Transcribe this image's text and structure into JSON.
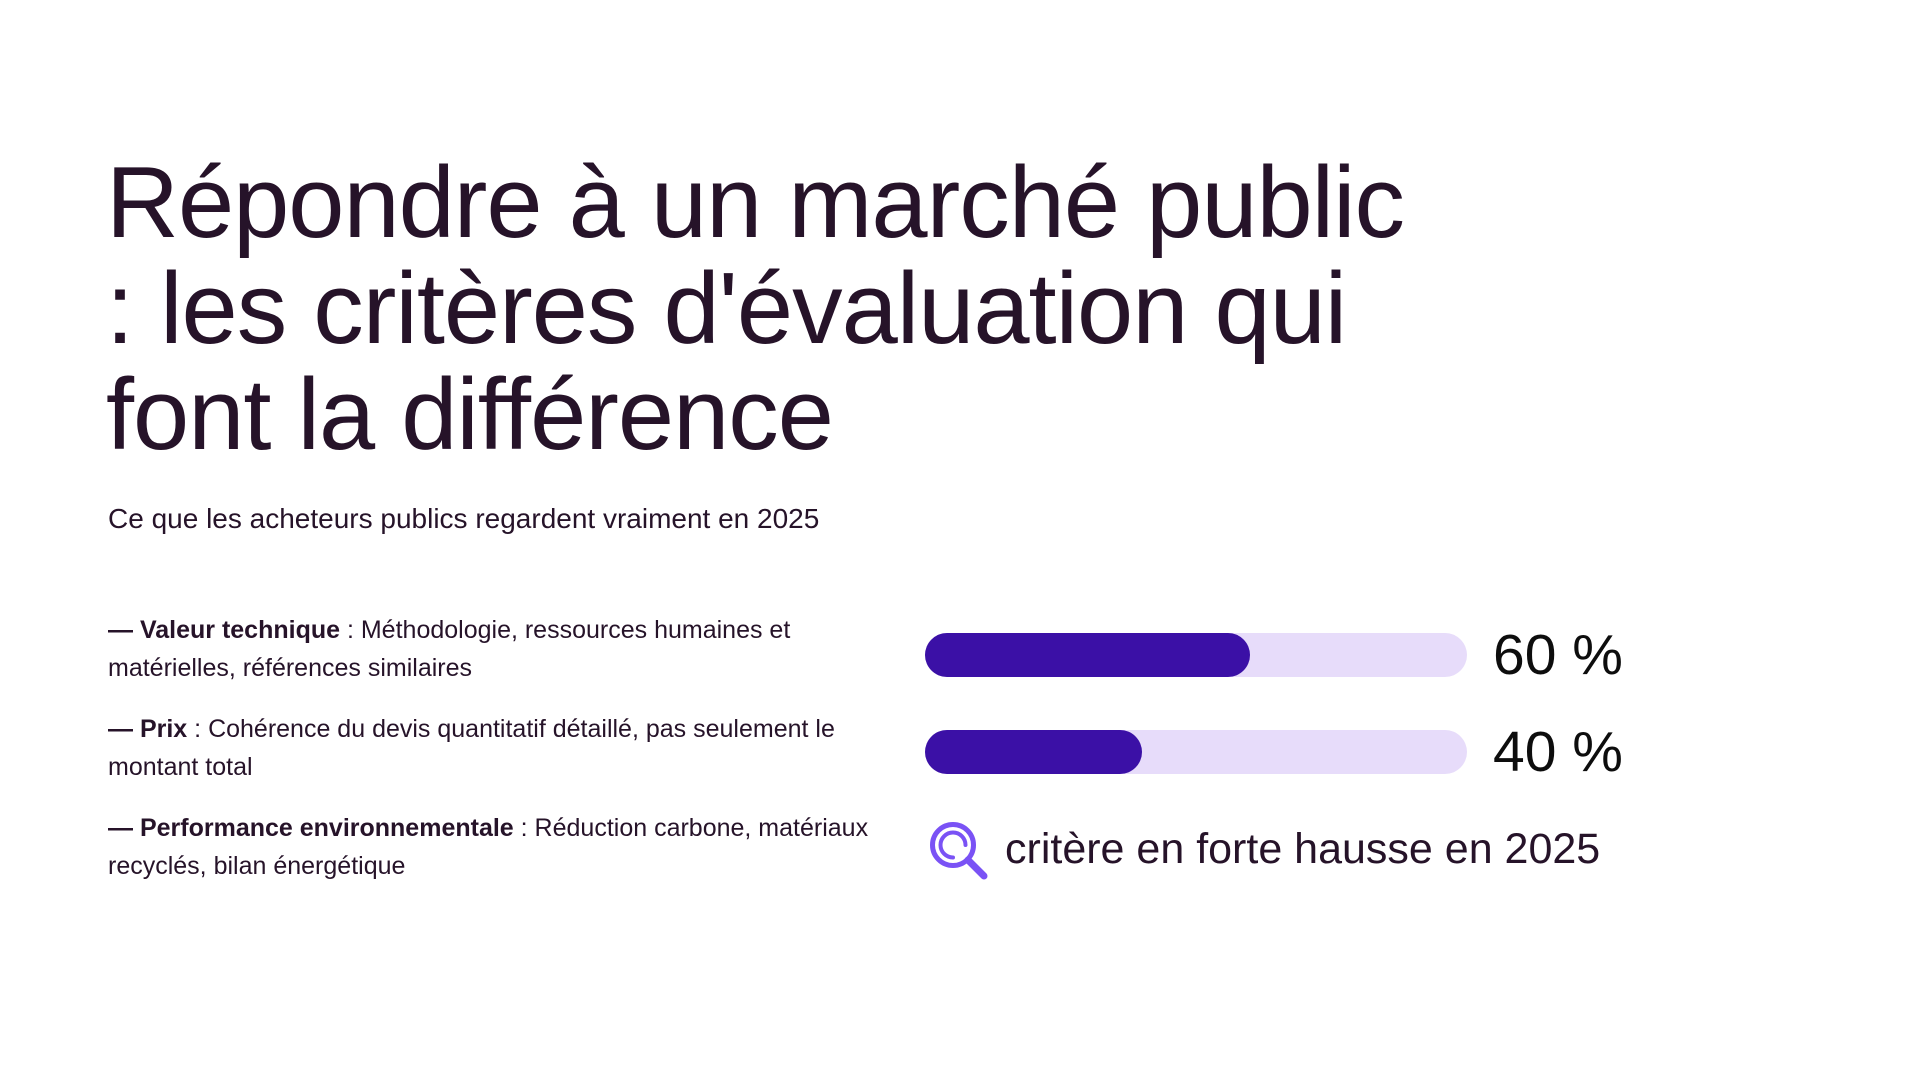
{
  "hero": {
    "title": "Répondre à un marché public : les critères d'évaluation qui font la différence",
    "title_lines": [
      "Répondre à un marché public",
      ": les critères d'évaluation qui",
      "font la différence"
    ],
    "subtitle": "Ce que les acheteurs publics regardent vraiment en 2025"
  },
  "criteria": {
    "dash": "—",
    "separator": " : ",
    "items": [
      {
        "label": "Valeur technique",
        "description": "Méthodologie, ressources humaines et matérielles, références similaires"
      },
      {
        "label": "Prix",
        "description": "Cohérence du devis quantitatif détaillé, pas seulement le montant total"
      },
      {
        "label": "Performance environnementale",
        "description": "Réduction carbone, matériaux recyclés, bilan énergétique"
      }
    ]
  },
  "weights": {
    "bars": [
      {
        "criterion": "Valeur technique",
        "value": 60,
        "label": "60 %"
      },
      {
        "criterion": "Prix",
        "value": 40,
        "label": "40 %"
      }
    ],
    "note": {
      "icon": "magnifier-icon",
      "text": "critère en forte hausse en 2025"
    }
  },
  "colors": {
    "background": "#ffffff",
    "ink": "#261329",
    "number": "#0d0d0d",
    "bar_fill": "#3b10a6",
    "bar_track": "#e7dcfa",
    "icon": "#7a52f5"
  },
  "chart_data": {
    "type": "bar",
    "title": "Répondre à un marché public : les critères d'évaluation qui font la différence",
    "subtitle": "Ce que les acheteurs publics regardent vraiment en 2025",
    "categories": [
      "Valeur technique",
      "Prix"
    ],
    "values": [
      60,
      40
    ],
    "unit": "%",
    "xlim": [
      0,
      100
    ],
    "value_labels": [
      "60 %",
      "40 %"
    ],
    "annotations": [
      "Performance environnementale : critère en forte hausse en 2025"
    ],
    "grid": false,
    "legend": false
  }
}
